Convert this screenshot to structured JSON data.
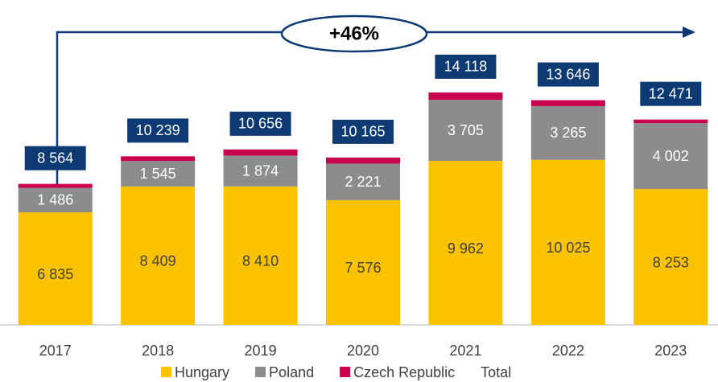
{
  "chart_data": {
    "type": "bar",
    "stacked": true,
    "annotation": "+46%",
    "categories": [
      "2017",
      "2018",
      "2019",
      "2020",
      "2021",
      "2022",
      "2023"
    ],
    "series": [
      {
        "name": "Hungary",
        "color": "#fbc200",
        "values": [
          6835,
          8409,
          8410,
          7576,
          9962,
          10025,
          8253
        ],
        "value_labels": [
          "6 835",
          "8 409",
          "8 410",
          "7 576",
          "9 962",
          "10 025",
          "8 253"
        ]
      },
      {
        "name": "Poland",
        "color": "#8c8c8c",
        "values": [
          1486,
          1545,
          1874,
          2221,
          3705,
          3265,
          4002
        ],
        "value_labels": [
          "1 486",
          "1 545",
          "1 874",
          "2 221",
          "3 705",
          "3 265",
          "4 002"
        ]
      },
      {
        "name": "Czech Republic",
        "color": "#c8004d",
        "values": [
          243,
          285,
          372,
          368,
          451,
          356,
          216
        ]
      },
      {
        "name": "Total",
        "color": "#0d3a72",
        "kind": "total",
        "values": [
          8564,
          10239,
          10656,
          10165,
          14118,
          13646,
          12471
        ],
        "value_labels": [
          "8 564",
          "10 239",
          "10 656",
          "10 165",
          "14 118",
          "13 646",
          "12 471"
        ]
      }
    ],
    "ylim": [
      0,
      19000
    ]
  }
}
